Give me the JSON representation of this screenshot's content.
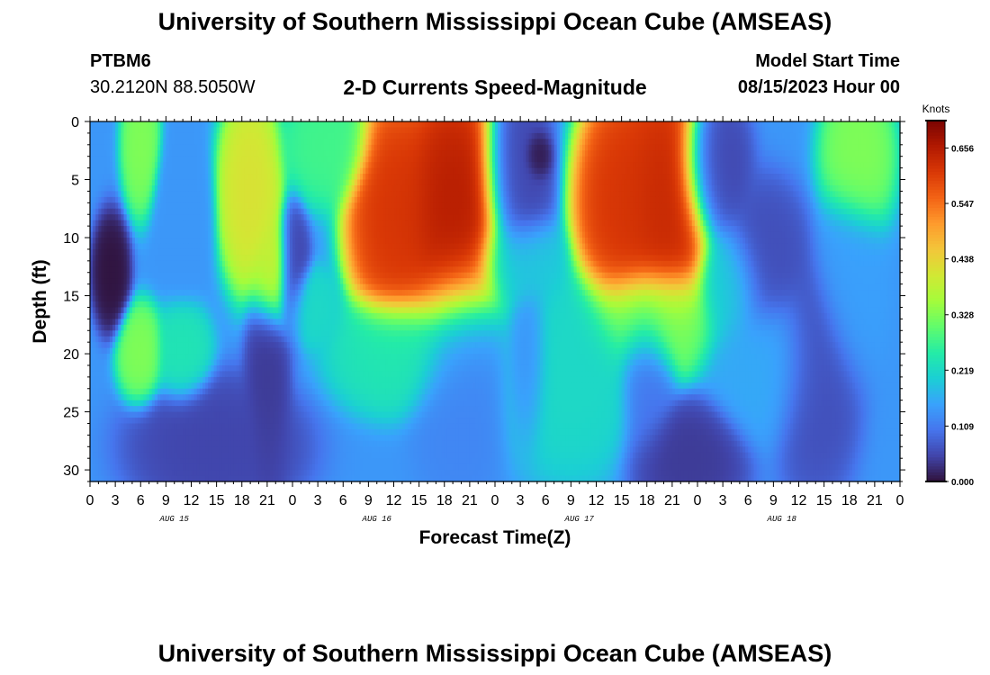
{
  "title": "University of Southern Mississippi Ocean Cube (AMSEAS)",
  "station": {
    "id": "PTBM6",
    "coords": "30.2120N  88.5050W"
  },
  "model_start": {
    "label": "Model Start Time",
    "value": "08/15/2023 Hour 00"
  },
  "footer_title": "University of Southern Mississippi Ocean Cube (AMSEAS)",
  "colors": {
    "background": "#ffffff",
    "palette": [
      "#30123b",
      "#4145ab",
      "#4675ed",
      "#39a2fc",
      "#1bcfd4",
      "#24eca6",
      "#61fc6c",
      "#a4fc3b",
      "#d1e834",
      "#f3c63a",
      "#fe9b2d",
      "#f36315",
      "#d93806",
      "#b11901",
      "#7a0402"
    ]
  },
  "chart_data": {
    "type": "heatmap",
    "title": "2-D Currents Speed-Magnitude",
    "xlabel": "Forecast Time(Z)",
    "ylabel": "Depth (ft)",
    "x_range_hours": [
      0,
      96
    ],
    "x_tick_labels": [
      "0",
      "3",
      "6",
      "9",
      "12",
      "15",
      "18",
      "21",
      "0",
      "3",
      "6",
      "9",
      "12",
      "15",
      "18",
      "21",
      "0",
      "3",
      "6",
      "9",
      "12",
      "15",
      "18",
      "21",
      "0",
      "3",
      "6",
      "9",
      "12",
      "15",
      "18",
      "21",
      "0"
    ],
    "day_labels": [
      {
        "hour": 10,
        "text": "AUG 15"
      },
      {
        "hour": 34,
        "text": "AUG 16"
      },
      {
        "hour": 58,
        "text": "AUG 17"
      },
      {
        "hour": 82,
        "text": "AUG 18"
      }
    ],
    "y_range_ft": [
      0,
      31
    ],
    "y_ticks": [
      0,
      5,
      10,
      15,
      20,
      25,
      30
    ],
    "colorbar": {
      "unit": "Knots",
      "min": 0.0,
      "max": 0.71,
      "tick_labels": [
        "0.000",
        "0.109",
        "0.219",
        "0.328",
        "0.438",
        "0.547",
        "0.656"
      ]
    },
    "features": [
      {
        "hour": 6,
        "depth": 2,
        "value": 0.33,
        "wx": 1.3,
        "wd": 3.5
      },
      {
        "hour": 2.5,
        "depth": 13,
        "value": 0.0,
        "wx": 1.3,
        "wd": 3
      },
      {
        "hour": 6,
        "depth": 20,
        "value": 0.33,
        "wx": 1.6,
        "wd": 2.5
      },
      {
        "hour": 11,
        "depth": 20,
        "value": 0.24,
        "wx": 2,
        "wd": 2.5
      },
      {
        "hour": 11,
        "depth": 8,
        "value": 0.14,
        "wx": 2,
        "wd": 4
      },
      {
        "hour": 19,
        "depth": 6,
        "value": 0.42,
        "wx": 2.2,
        "wd": 5
      },
      {
        "hour": 21.5,
        "depth": 13,
        "value": 0.4,
        "wx": 1.5,
        "wd": 3
      },
      {
        "hour": 24,
        "depth": 13,
        "value": 0.05,
        "wx": 1.2,
        "wd": 3.5
      },
      {
        "hour": 28,
        "depth": 2,
        "value": 0.28,
        "wx": 3,
        "wd": 3
      },
      {
        "hour": 21,
        "depth": 23,
        "value": 0.04,
        "wx": 1.5,
        "wd": 6
      },
      {
        "hour": 15,
        "depth": 28,
        "value": 0.05,
        "wx": 6,
        "wd": 3.5
      },
      {
        "hour": 26,
        "depth": 16,
        "value": 0.22,
        "wx": 2,
        "wd": 2
      },
      {
        "hour": 36,
        "depth": 20,
        "value": 0.24,
        "wx": 4.5,
        "wd": 3
      },
      {
        "hour": 36,
        "depth": 8,
        "value": 0.62,
        "wx": 3.2,
        "wd": 6
      },
      {
        "hour": 43,
        "depth": 8,
        "value": 0.66,
        "wx": 4,
        "wd": 7
      },
      {
        "hour": 44,
        "depth": 22,
        "value": 0.12,
        "wx": 3.5,
        "wd": 6
      },
      {
        "hour": 50.5,
        "depth": 5,
        "value": 0.05,
        "wx": 2.5,
        "wd": 5
      },
      {
        "hour": 53,
        "depth": 3,
        "value": 0.0,
        "wx": 1.0,
        "wd": 1.3
      },
      {
        "hour": 52,
        "depth": 21,
        "value": 0.12,
        "wx": 1.5,
        "wd": 4
      },
      {
        "hour": 51,
        "depth": 12,
        "value": 0.2,
        "wx": 3,
        "wd": 2.5
      },
      {
        "hour": 57,
        "depth": 22,
        "value": 0.22,
        "wx": 5,
        "wd": 5
      },
      {
        "hour": 63,
        "depth": 7,
        "value": 0.62,
        "wx": 3.2,
        "wd": 6
      },
      {
        "hour": 68,
        "depth": 7,
        "value": 0.64,
        "wx": 3.5,
        "wd": 7
      },
      {
        "hour": 67,
        "depth": 17,
        "value": 0.3,
        "wx": 4.5,
        "wd": 3
      },
      {
        "hour": 66,
        "depth": 22,
        "value": 0.1,
        "wx": 2,
        "wd": 4
      },
      {
        "hour": 74,
        "depth": 4,
        "value": 0.05,
        "wx": 2.5,
        "wd": 4
      },
      {
        "hour": 71,
        "depth": 29,
        "value": 0.04,
        "wx": 4,
        "wd": 3
      },
      {
        "hour": 76,
        "depth": 14,
        "value": 0.2,
        "wx": 2.5,
        "wd": 3
      },
      {
        "hour": 80,
        "depth": 12,
        "value": 0.06,
        "wx": 3,
        "wd": 4
      },
      {
        "hour": 80,
        "depth": 21,
        "value": 0.16,
        "wx": 4,
        "wd": 4
      },
      {
        "hour": 86,
        "depth": 22,
        "value": 0.06,
        "wx": 3,
        "wd": 6
      },
      {
        "hour": 91,
        "depth": 3,
        "value": 0.33,
        "wx": 2.5,
        "wd": 4
      },
      {
        "hour": 90,
        "depth": 14,
        "value": 0.15,
        "wx": 2.5,
        "wd": 5
      }
    ],
    "grid": false,
    "colorbar_position": "right"
  }
}
